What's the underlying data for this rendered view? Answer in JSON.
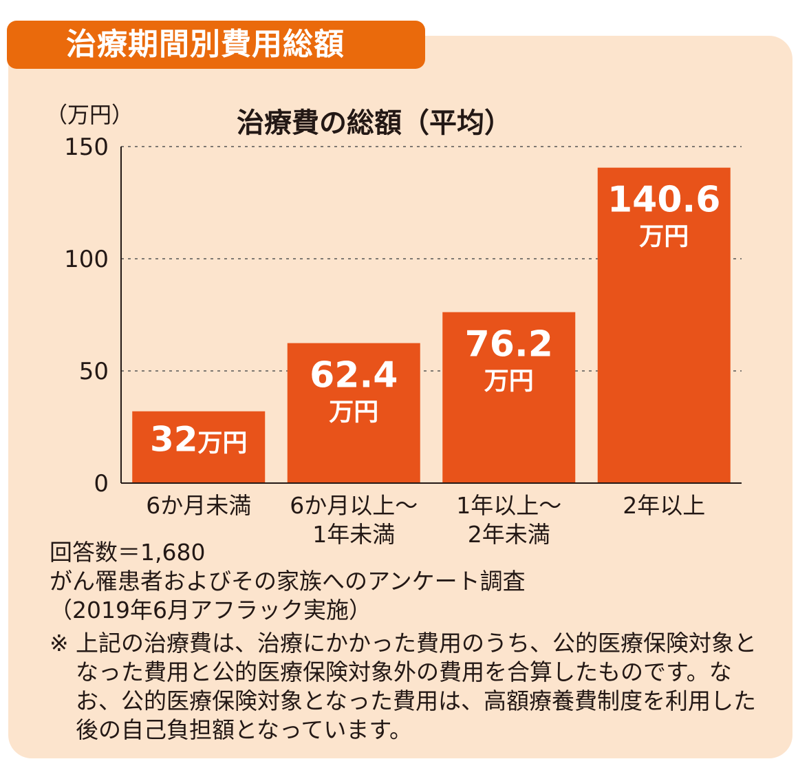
{
  "header": {
    "title": "治療期間別費用総額"
  },
  "chart_data": {
    "type": "bar",
    "title": "治療費の総額（平均）",
    "ylabel": "（万円）",
    "ylim": [
      0,
      150
    ],
    "yticks": [
      0,
      50,
      100,
      150
    ],
    "grid": true,
    "categories": [
      [
        "6か月未満"
      ],
      [
        "6か月以上〜",
        "1年未満"
      ],
      [
        "1年以上〜",
        "2年未満"
      ],
      [
        "2年以上"
      ]
    ],
    "values": [
      32,
      62.4,
      76.2,
      140.6
    ],
    "data_labels": [
      {
        "value": "32",
        "unit": "万円",
        "inline": true
      },
      {
        "value": "62.4",
        "unit": "万円",
        "inline": false
      },
      {
        "value": "76.2",
        "unit": "万円",
        "inline": false
      },
      {
        "value": "140.6",
        "unit": "万円",
        "inline": false
      }
    ],
    "bar_color": "#e8531a"
  },
  "footnotes": {
    "lines": [
      "回答数＝1,680",
      "がん罹患者およびその家族へのアンケート調査",
      "（2019年6月アフラック実施）"
    ],
    "note_mark": "※",
    "note": "上記の治療費は、治療にかかった費用のうち、公的医療保険対象となった費用と公的医療保険対象外の費用を合算したものです。なお、公的医療保険対象となった費用は、高額療養費制度を利用した後の自己負担額となっています。"
  },
  "colors": {
    "accent": "#ea6a0c",
    "bar": "#e8531a",
    "panel_bg": "#fce4cd",
    "text": "#231815"
  }
}
